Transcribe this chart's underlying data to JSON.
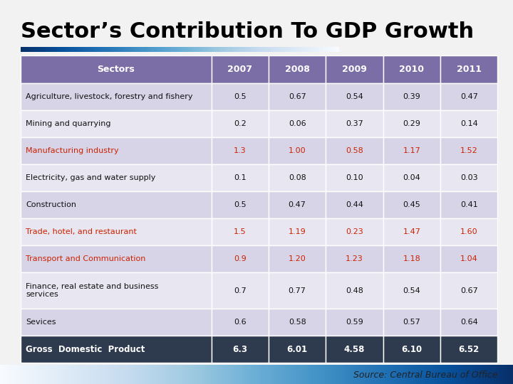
{
  "title": "Sector’s Contribution To GDP Growth",
  "source": "Source: Central Bureau of Office",
  "columns": [
    "Sectors",
    "2007",
    "2008",
    "2009",
    "2010",
    "2011"
  ],
  "rows": [
    {
      "label": "Agriculture, livestock, forestry and fishery",
      "values": [
        "0.5",
        "0.67",
        "0.54",
        "0.39",
        "0.47"
      ],
      "highlight": false,
      "bold": false,
      "two_line": false
    },
    {
      "label": "Mining and quarrying",
      "values": [
        "0.2",
        "0.06",
        "0.37",
        "0.29",
        "0.14"
      ],
      "highlight": false,
      "bold": false,
      "two_line": false
    },
    {
      "label": "Manufacturing industry",
      "values": [
        "1.3",
        "1.00",
        "0.58",
        "1.17",
        "1.52"
      ],
      "highlight": true,
      "bold": false,
      "two_line": false
    },
    {
      "label": "Electricity, gas and water supply",
      "values": [
        "0.1",
        "0.08",
        "0.10",
        "0.04",
        "0.03"
      ],
      "highlight": false,
      "bold": false,
      "two_line": false
    },
    {
      "label": "Construction",
      "values": [
        "0.5",
        "0.47",
        "0.44",
        "0.45",
        "0.41"
      ],
      "highlight": false,
      "bold": false,
      "two_line": false
    },
    {
      "label": "Trade, hotel, and restaurant",
      "values": [
        "1.5",
        "1.19",
        "0.23",
        "1.47",
        "1.60"
      ],
      "highlight": true,
      "bold": false,
      "two_line": false
    },
    {
      "label": "Transport and Communication",
      "values": [
        "0.9",
        "1.20",
        "1.23",
        "1.18",
        "1.04"
      ],
      "highlight": true,
      "bold": false,
      "two_line": false
    },
    {
      "label": "Finance, real estate and business\nservices",
      "values": [
        "0.7",
        "0.77",
        "0.48",
        "0.54",
        "0.67"
      ],
      "highlight": false,
      "bold": false,
      "two_line": true
    },
    {
      "label": "Sevices",
      "values": [
        "0.6",
        "0.58",
        "0.59",
        "0.57",
        "0.64"
      ],
      "highlight": false,
      "bold": false,
      "two_line": false
    },
    {
      "label": "Gross  Domestic  Product",
      "values": [
        "6.3",
        "6.01",
        "4.58",
        "6.10",
        "6.52"
      ],
      "highlight": false,
      "bold": true,
      "two_line": false
    }
  ],
  "header_bg": "#7B6EA6",
  "header_text": "#FFFFFF",
  "row_bg_even": "#D8D4E8",
  "row_bg_odd": "#E8E6F0",
  "highlight_color": "#CC2200",
  "footer_bg": "#2E3A4E",
  "footer_text": "#FFFFFF",
  "title_color": "#000000",
  "title_fontsize": 22,
  "source_fontsize": 9,
  "bg_color": "#F2F2F2"
}
